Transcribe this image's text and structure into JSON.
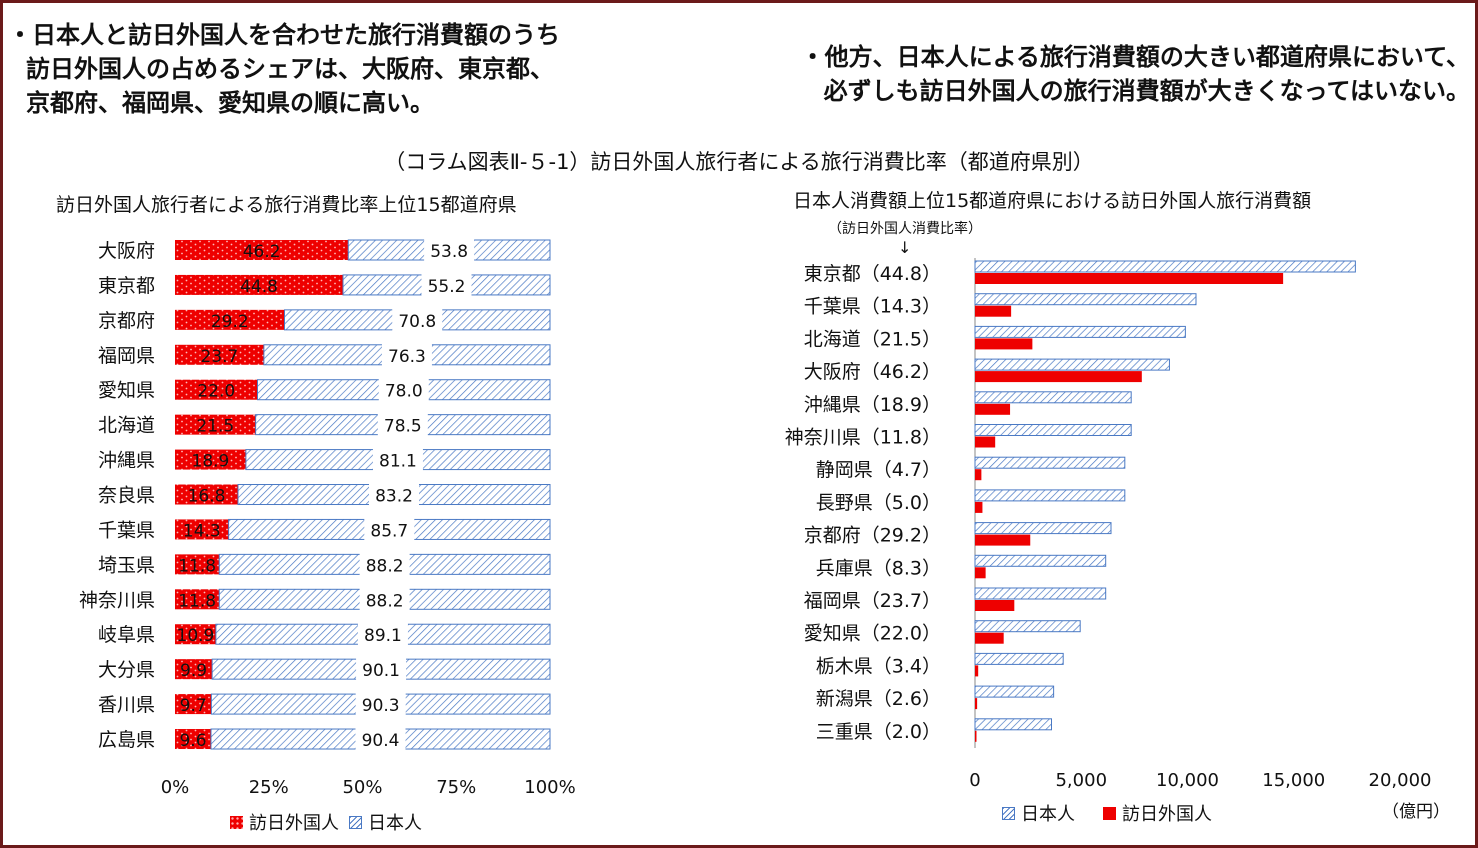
{
  "headline_left": [
    "・日本人と訪日外国人を合わせた旅行消費額のうち",
    "訪日外国人の占めるシェアは、大阪府、東京都、",
    "京都府、福岡県、愛知県の順に高い。"
  ],
  "headline_right": [
    "・他方、日本人による旅行消費額の大きい都道府県において、",
    "必ずしも訪日外国人の旅行消費額が大きくなってはいない。"
  ],
  "figure_caption": "（コラム図表Ⅱ-５-1）訪日外国人旅行者による旅行消費比率（都道府県別）",
  "colors": {
    "foreign": "#ee0000",
    "japanese": "#4a79c4",
    "frame": "#6b1a1a"
  },
  "chart_data": [
    {
      "type": "bar",
      "orientation": "horizontal",
      "stacked": true,
      "title": "訪日外国人旅行者による旅行消費比率上位15都道府県",
      "categories": [
        "大阪府",
        "東京都",
        "京都府",
        "福岡県",
        "愛知県",
        "北海道",
        "沖縄県",
        "奈良県",
        "千葉県",
        "埼玉県",
        "神奈川県",
        "岐阜県",
        "大分県",
        "香川県",
        "広島県"
      ],
      "series": [
        {
          "name": "訪日外国人",
          "values": [
            46.2,
            44.8,
            29.2,
            23.7,
            22.0,
            21.5,
            18.9,
            16.8,
            14.3,
            11.8,
            11.8,
            10.9,
            9.9,
            9.7,
            9.6
          ]
        },
        {
          "name": "日本人",
          "values": [
            53.8,
            55.2,
            70.8,
            76.3,
            78.0,
            78.5,
            81.1,
            83.2,
            85.7,
            88.2,
            88.2,
            89.1,
            90.1,
            90.3,
            90.4
          ]
        }
      ],
      "value_labels_foreign": [
        "46.2",
        "44.8",
        "29.2",
        "23.7",
        "22.0",
        "21.5",
        "18.9",
        "16.8",
        "14.3",
        "11.8",
        "11.8",
        "10.9",
        "9.9",
        "9.7",
        "9.6"
      ],
      "value_labels_japanese": [
        "53.8",
        "55.2",
        "70.8",
        "76.3",
        "78.0",
        "78.5",
        "81.1",
        "83.2",
        "85.7",
        "88.2",
        "88.2",
        "89.1",
        "90.1",
        "90.3",
        "90.4"
      ],
      "xlim": [
        0,
        100
      ],
      "xticks": [
        "0%",
        "25%",
        "50%",
        "75%",
        "100%"
      ],
      "legend": "bottom"
    },
    {
      "type": "bar",
      "orientation": "horizontal",
      "title": "日本人消費額上位15都道府県における訪日外国人旅行消費額",
      "note": "（訪日外国人消費比率）",
      "arrow": "↓",
      "categories": [
        "東京都（44.8）",
        "千葉県（14.3）",
        "北海道（21.5）",
        "大阪府（46.2）",
        "沖縄県（18.9）",
        "神奈川県（11.8）",
        "静岡県（4.7）",
        "長野県（5.0）",
        "京都府（29.2）",
        "兵庫県（8.3）",
        "福岡県（23.7）",
        "愛知県（22.0）",
        "栃木県（3.4）",
        "新潟県（2.6）",
        "三重県（2.0）"
      ],
      "series": [
        {
          "name": "日本人",
          "values": [
            17900,
            10400,
            9900,
            9150,
            7350,
            7350,
            7050,
            7050,
            6400,
            6150,
            6150,
            4950,
            4150,
            3700,
            3600
          ]
        },
        {
          "name": "訪日外国人",
          "values": [
            14500,
            1700,
            2700,
            7850,
            1650,
            950,
            300,
            350,
            2600,
            500,
            1850,
            1350,
            150,
            100,
            70
          ]
        }
      ],
      "xlim": [
        0,
        20000
      ],
      "xticks": [
        "0",
        "5,000",
        "10,000",
        "15,000",
        "20,000"
      ],
      "unit": "（億円）",
      "legend": "bottom"
    }
  ]
}
